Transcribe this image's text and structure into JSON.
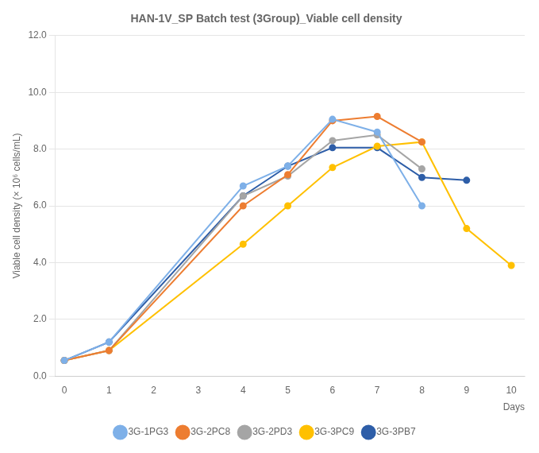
{
  "chart_data": {
    "type": "line",
    "title": "HAN-1V_SP Batch test (3Group)_Viable cell density",
    "xlabel": "Days",
    "ylabel": "Viable cell density (× 10⁶ cells/mL)",
    "xlim": [
      -0.2,
      10.3
    ],
    "ylim": [
      0,
      12.0
    ],
    "xticks": [
      0,
      1,
      2,
      3,
      4,
      5,
      6,
      7,
      8,
      9,
      10
    ],
    "yticks": [
      {
        "value": 0.0,
        "label": "0.0"
      },
      {
        "value": 2.0,
        "label": "2.0"
      },
      {
        "value": 4.0,
        "label": "4.0"
      },
      {
        "value": 6.0,
        "label": "6.0"
      },
      {
        "value": 8.0,
        "label": "8.0"
      },
      {
        "value": 10.0,
        "label": "10.0"
      },
      {
        "value": 12.0,
        "label": "12.0"
      }
    ],
    "grid": "y",
    "legend": "bottom",
    "series": [
      {
        "name": "3G-1PG3",
        "color": "#7EB0E8",
        "marker": "circle",
        "line_style": "solid",
        "x": [
          0,
          1,
          4,
          5,
          6,
          7,
          8
        ],
        "values": [
          0.55,
          1.2,
          6.7,
          7.4,
          9.05,
          8.6,
          6.0
        ]
      },
      {
        "name": "3G-2PC8",
        "color": "#ED7D31",
        "marker": "circle",
        "line_style": "solid",
        "x": [
          0,
          1,
          4,
          5,
          6,
          7,
          8
        ],
        "values": [
          0.55,
          0.9,
          6.0,
          7.1,
          9.0,
          9.15,
          8.25
        ]
      },
      {
        "name": "3G-2PD3",
        "color": "#A5A5A5",
        "marker": "circle",
        "line_style": "solid",
        "x": [
          0,
          1,
          4,
          5,
          6,
          7,
          8
        ],
        "values": [
          0.55,
          0.9,
          6.35,
          7.05,
          8.3,
          8.5,
          7.3
        ]
      },
      {
        "name": "3G-3PC9",
        "color": "#FFC000",
        "marker": "circle",
        "line_style": "solid",
        "x": [
          0,
          1,
          4,
          5,
          6,
          7,
          8,
          9,
          10
        ],
        "values": [
          0.55,
          0.9,
          4.65,
          6.0,
          7.35,
          8.1,
          8.25,
          5.2,
          3.9
        ]
      },
      {
        "name": "3G-3PB7",
        "color": "#2E5EA8",
        "marker": "circle",
        "line_style": "solid",
        "x": [
          0,
          1,
          4,
          5,
          6,
          7,
          8,
          9
        ],
        "values": [
          0.55,
          1.2,
          6.35,
          7.4,
          8.05,
          8.05,
          7.0,
          6.9
        ]
      }
    ]
  }
}
